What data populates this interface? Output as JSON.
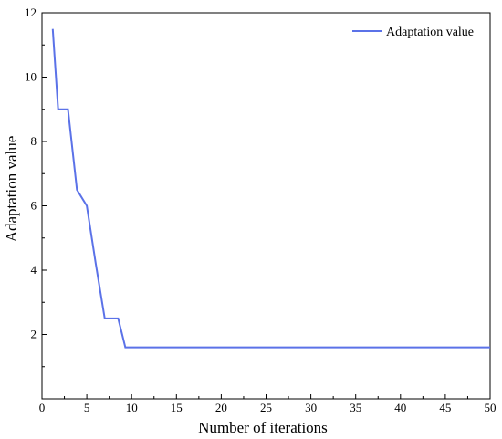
{
  "chart_data": {
    "type": "line",
    "xlabel": "Number of iterations",
    "ylabel": "Adaptation value",
    "xlim": [
      0,
      50
    ],
    "ylim": [
      0,
      12
    ],
    "xticks": [
      0,
      5,
      10,
      15,
      20,
      25,
      30,
      35,
      40,
      45,
      50
    ],
    "yticks": [
      2,
      4,
      6,
      8,
      10,
      12
    ],
    "grid": false,
    "legend_position": "top-right",
    "series": [
      {
        "name": "Adaptation value",
        "color": "#5b72e8",
        "x": [
          1.2,
          1.8,
          2.9,
          3.9,
          5.0,
          6.0,
          7.0,
          8.5,
          9.3,
          10,
          15,
          20,
          25,
          30,
          35,
          40,
          45,
          50
        ],
        "y": [
          11.5,
          9.0,
          9.0,
          6.5,
          6.0,
          4.2,
          2.5,
          2.5,
          1.6,
          1.6,
          1.6,
          1.6,
          1.6,
          1.6,
          1.6,
          1.6,
          1.6,
          1.6
        ]
      }
    ]
  }
}
